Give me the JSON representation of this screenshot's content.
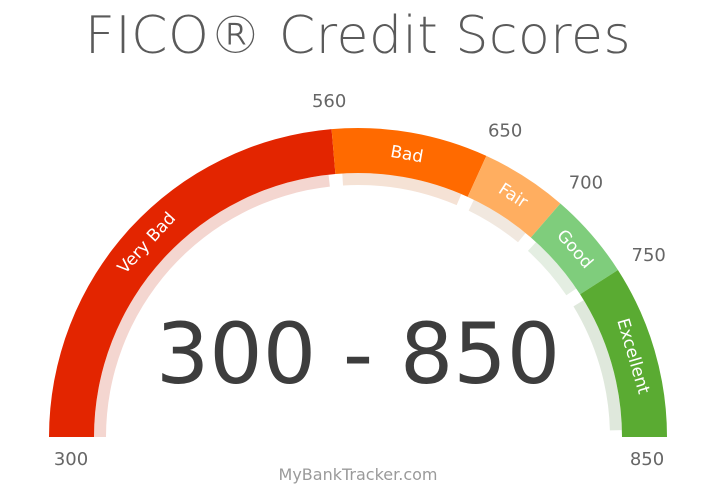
{
  "title": "FICO® Credit Scores",
  "footer": "MyBankTracker.com",
  "center_label": "300 - 850",
  "chart_data": {
    "type": "gauge",
    "min": 300,
    "max": 850,
    "segments": [
      {
        "label": "Very Bad",
        "from": 300,
        "to": 560,
        "color": "#e32500",
        "shadow": "#f4d6d0"
      },
      {
        "label": "Bad",
        "from": 560,
        "to": 650,
        "color": "#ff6a00",
        "shadow": "#f5e2d5"
      },
      {
        "label": "Fair",
        "from": 650,
        "to": 700,
        "color": "#ffae60",
        "shadow": "#f1e8df"
      },
      {
        "label": "Good",
        "from": 700,
        "to": 750,
        "color": "#7fcd7c",
        "shadow": "#e4eee2"
      },
      {
        "label": "Excellent",
        "from": 750,
        "to": 850,
        "color": "#5aab32",
        "shadow": "#dfe8dc"
      }
    ],
    "tick_labels": [
      "300",
      "560",
      "650",
      "700",
      "750",
      "850"
    ]
  }
}
